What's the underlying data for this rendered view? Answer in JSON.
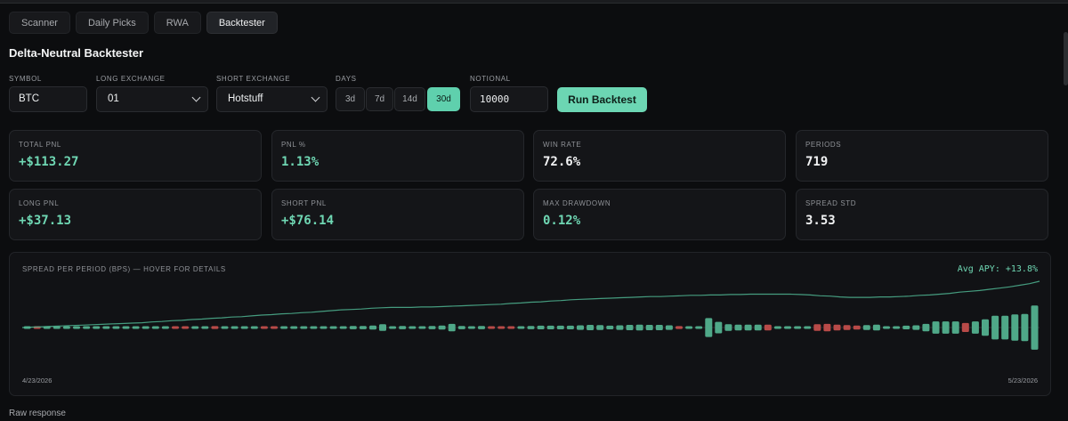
{
  "tabs": [
    {
      "label": "Scanner",
      "active": false
    },
    {
      "label": "Daily Picks",
      "active": false
    },
    {
      "label": "RWA",
      "active": false
    },
    {
      "label": "Backtester",
      "active": true
    }
  ],
  "title": "Delta-Neutral Backtester",
  "form": {
    "symbol_label": "SYMBOL",
    "symbol_value": "BTC",
    "long_label": "LONG EXCHANGE",
    "long_value": "01",
    "short_label": "SHORT EXCHANGE",
    "short_value": "Hotstuff",
    "days_label": "DAYS",
    "days": [
      "3d",
      "7d",
      "14d",
      "30d"
    ],
    "days_selected": "30d",
    "notional_label": "NOTIONAL",
    "notional_value": "10000",
    "run_label": "Run Backtest"
  },
  "metrics": [
    {
      "label": "TOTAL PNL",
      "value": "+$113.27",
      "green": true
    },
    {
      "label": "PNL %",
      "value": "1.13%",
      "green": true
    },
    {
      "label": "WIN RATE",
      "value": "72.6%",
      "green": false
    },
    {
      "label": "PERIODS",
      "value": "719",
      "green": false
    },
    {
      "label": "LONG PNL",
      "value": "+$37.13",
      "green": true
    },
    {
      "label": "SHORT PNL",
      "value": "+$76.14",
      "green": true
    },
    {
      "label": "MAX DRAWDOWN",
      "value": "0.12%",
      "green": true
    },
    {
      "label": "SPREAD STD",
      "value": "3.53",
      "green": false
    }
  ],
  "chart": {
    "label": "SPREAD PER PERIOD (BPS) — HOVER FOR DETAILS",
    "apy_label": "Avg APY: +13.8%",
    "x_start": "4/23/2026",
    "x_end": "5/23/2026"
  },
  "raw_label": "Raw response",
  "colors": {
    "accent": "#6cd6b3",
    "positive": "#4fa888",
    "negative": "#b84a48"
  },
  "chart_data": {
    "type": "bar",
    "x_start": "4/23/2026",
    "x_end": "5/23/2026",
    "series": [
      {
        "kind": "bar",
        "values": [
          0.3,
          -0.2,
          0.5,
          0.6,
          0.6,
          0.4,
          0.4,
          0.4,
          0.3,
          0.5,
          0.4,
          0.4,
          0.5,
          0.6,
          0.4,
          -0.5,
          -0.5,
          0.5,
          0.6,
          -0.7,
          0.5,
          0.5,
          0.4,
          0.3,
          -0.4,
          -0.3,
          0.4,
          0.6,
          0.6,
          0.6,
          0.6,
          0.6,
          0.6,
          0.8,
          0.8,
          1.0,
          1.6,
          0.6,
          0.8,
          0.6,
          0.6,
          0.8,
          1.0,
          1.8,
          0.8,
          0.5,
          0.8,
          -0.4,
          -0.4,
          -0.3,
          0.6,
          0.8,
          0.9,
          0.9,
          0.9,
          0.9,
          1.1,
          1.3,
          1.2,
          0.9,
          1.1,
          1.3,
          1.4,
          1.3,
          1.3,
          1.1,
          -0.7,
          0.6,
          0.3,
          4.6,
          2.8,
          1.6,
          1.4,
          1.4,
          1.4,
          -1.4,
          0.6,
          0.6,
          0.4,
          0.6,
          -1.6,
          -1.8,
          -1.4,
          -1.2,
          -1.0,
          1.2,
          1.4,
          0.4,
          0.6,
          0.9,
          1.1,
          1.8,
          3.0,
          3.0,
          3.0,
          -2.2,
          3.0,
          4.0,
          5.8,
          5.8,
          6.4,
          6.6,
          10.8
        ],
        "colors_neg_marked": true
      },
      {
        "kind": "line",
        "values": [
          0,
          0.1,
          0.2,
          0.3,
          0.4,
          0.5,
          0.6,
          0.7,
          0.8,
          0.9,
          1.0,
          1.1,
          1.2,
          1.4,
          1.5,
          1.7,
          1.8,
          2.0,
          2.1,
          2.3,
          2.4,
          2.6,
          2.7,
          2.9,
          3.1,
          3.2,
          3.4,
          3.5,
          3.7,
          3.8,
          4.0,
          4.2,
          4.4,
          4.5,
          4.6,
          4.8,
          4.9,
          5.0,
          5.0,
          5.0,
          5.1,
          5.1,
          5.2,
          5.3,
          5.4,
          5.5,
          5.6,
          5.7,
          5.8,
          6.0,
          6.1,
          6.3,
          6.4,
          6.6,
          6.7,
          6.9,
          7.0,
          7.1,
          7.2,
          7.3,
          7.4,
          7.5,
          7.6,
          7.7,
          7.7,
          7.8,
          7.9,
          8.0,
          8.0,
          8.1,
          8.1,
          8.2,
          8.2,
          8.3,
          8.3,
          8.3,
          8.3,
          8.3,
          8.2,
          8.1,
          7.9,
          7.8,
          7.6,
          7.5,
          7.5,
          7.5,
          7.6,
          7.6,
          7.7,
          7.8,
          8.0,
          8.1,
          8.3,
          8.5,
          8.8,
          9.0,
          9.2,
          9.5,
          9.8,
          10.1,
          10.5,
          10.9,
          11.5
        ]
      }
    ]
  }
}
